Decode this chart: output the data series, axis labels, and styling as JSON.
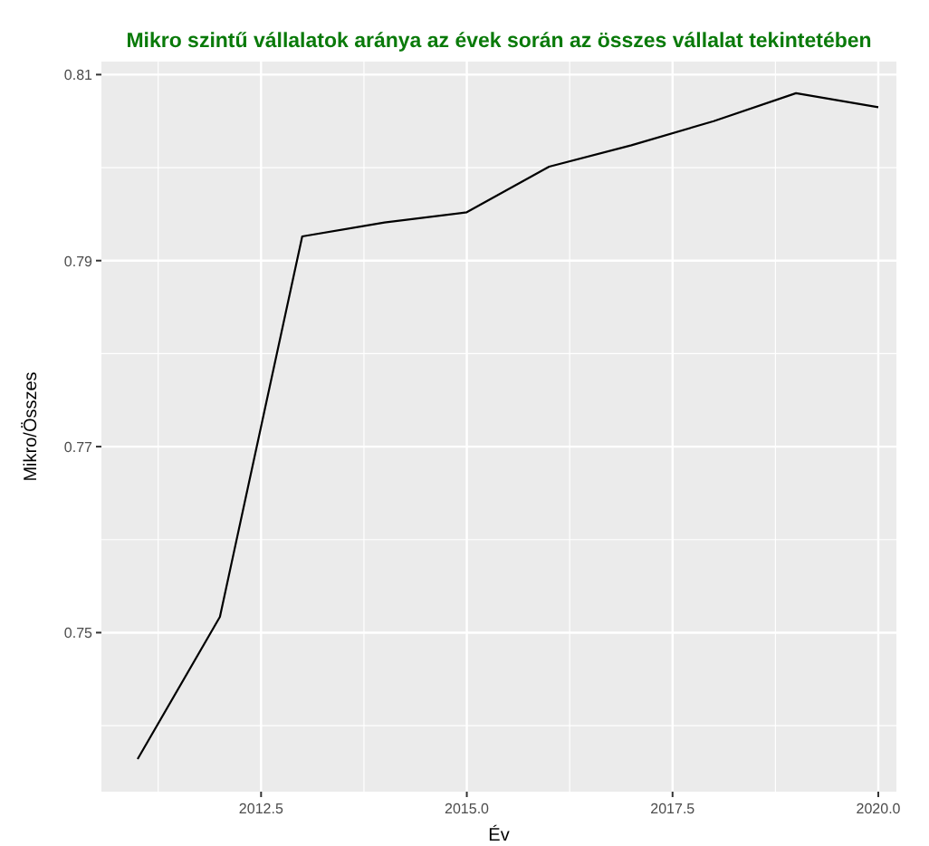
{
  "chart_data": {
    "type": "line",
    "title": "Mikro szintű vállalatok aránya az évek során az összes vállalat tekintetében",
    "xlabel": "Év",
    "ylabel": "Mikro/Összes",
    "x": [
      2011,
      2012,
      2013,
      2014,
      2015,
      2016,
      2017,
      2018,
      2019,
      2020
    ],
    "series": [
      {
        "color": "#000000",
        "values": [
          0.7364,
          0.7517,
          0.7926,
          0.7941,
          0.7952,
          0.8001,
          0.8024,
          0.805,
          0.808,
          0.8065
        ]
      }
    ],
    "xlim": [
      2010.56,
      2020.22
    ],
    "xticks": [
      {
        "value": 2012.5,
        "label": "2012.5"
      },
      {
        "value": 2015,
        "label": "2015.0"
      },
      {
        "value": 2017.5,
        "label": "2017.5"
      },
      {
        "value": 2020,
        "label": "2020.0"
      }
    ],
    "ylim": [
      0.7329,
      0.8114
    ],
    "yticks": [
      0.75,
      0.77,
      0.79,
      0.81
    ],
    "grid": true
  }
}
